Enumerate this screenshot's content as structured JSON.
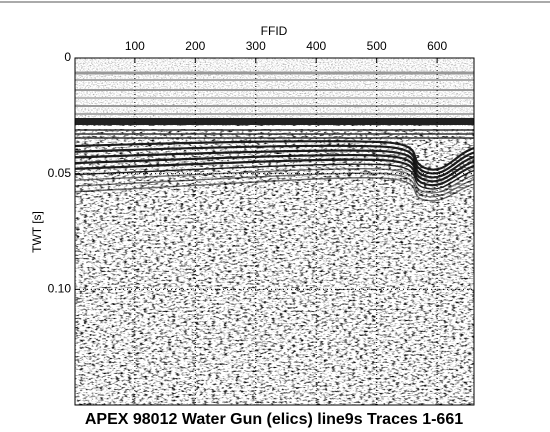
{
  "chart_data": {
    "type": "seismic",
    "title": "APEX 98012 Water Gun (elics) line9s Traces 1-661",
    "xlabel": "FFID",
    "ylabel": "TWT [s]",
    "xlim": [
      1,
      661
    ],
    "xticks": [
      100,
      200,
      300,
      400,
      500,
      600
    ],
    "ylim": [
      0,
      0.15
    ],
    "yticks": [
      0,
      0.05,
      {
        "value": 0.1,
        "label": "0.10"
      }
    ],
    "y_inverted": true,
    "grid": true
  }
}
